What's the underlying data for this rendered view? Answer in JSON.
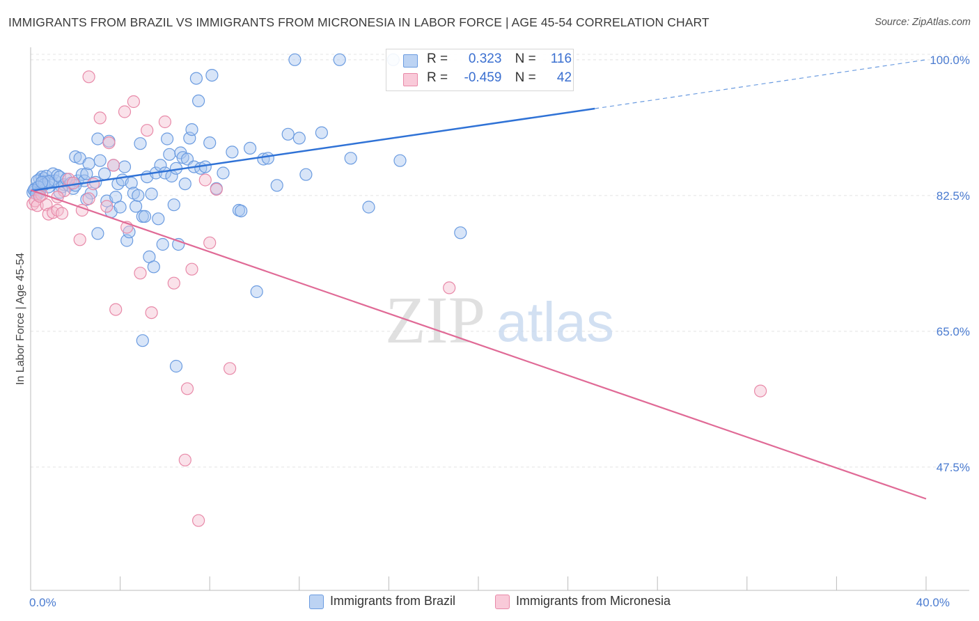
{
  "title": "IMMIGRANTS FROM BRAZIL VS IMMIGRANTS FROM MICRONESIA IN LABOR FORCE | AGE 45-54 CORRELATION CHART",
  "source": "Source: ZipAtlas.com",
  "watermark": {
    "zip": "ZIP",
    "atlas": "atlas"
  },
  "legend": {
    "rows": [
      {
        "r_label": "R =",
        "r_value": "0.323",
        "n_label": "N =",
        "n_value": "116",
        "color": "#6a9be0"
      },
      {
        "r_label": "R =",
        "r_value": "-0.459",
        "n_label": "N =",
        "n_value": "42",
        "color": "#e889a8"
      }
    ]
  },
  "bottom_legend": [
    {
      "label": "Immigrants from Brazil",
      "color": "#6a9be0"
    },
    {
      "label": "Immigrants from Micronesia",
      "color": "#e889a8"
    }
  ],
  "chart_data": {
    "type": "scatter",
    "title": "IMMIGRANTS FROM BRAZIL VS IMMIGRANTS FROM MICRONESIA IN LABOR FORCE | AGE 45-54 CORRELATION CHART",
    "xlabel": "",
    "ylabel": "In Labor Force | Age 45-54",
    "xlim": [
      0,
      40
    ],
    "ylim": [
      31.6,
      101.6
    ],
    "x_tick_labels": [
      {
        "value": 0,
        "label": "0.0%"
      },
      {
        "value": 40,
        "label": "40.0%"
      }
    ],
    "y_tick_labels": [
      {
        "value": 100,
        "label": "100.0%"
      },
      {
        "value": 82.5,
        "label": "82.5%"
      },
      {
        "value": 65,
        "label": "65.0%"
      },
      {
        "value": 47.5,
        "label": "47.5%"
      }
    ],
    "grid": true,
    "legend_position": "top-center",
    "series": [
      {
        "name": "Immigrants from Brazil",
        "color": "#6a9be0",
        "fill": "#a9c6ef",
        "trend": {
          "x": [
            0,
            25.2
          ],
          "y": [
            83.1,
            93.7
          ],
          "dashed_to": [
            40,
            100
          ]
        },
        "points": [
          [
            0.2,
            83.1
          ],
          [
            0.3,
            83.0
          ],
          [
            0.3,
            82.6
          ],
          [
            0.4,
            84.6
          ],
          [
            0.4,
            83.3
          ],
          [
            0.5,
            84.9
          ],
          [
            0.6,
            84.7
          ],
          [
            0.6,
            84.3
          ],
          [
            0.7,
            85.0
          ],
          [
            0.8,
            83.6
          ],
          [
            0.9,
            84.4
          ],
          [
            1.0,
            85.3
          ],
          [
            1.1,
            84.4
          ],
          [
            1.2,
            85.1
          ],
          [
            1.3,
            84.9
          ],
          [
            1.4,
            83.6
          ],
          [
            1.5,
            83.9
          ],
          [
            1.6,
            84.6
          ],
          [
            1.7,
            83.8
          ],
          [
            1.8,
            84.1
          ],
          [
            1.9,
            83.4
          ],
          [
            2.0,
            87.5
          ],
          [
            2.1,
            84.4
          ],
          [
            2.2,
            87.3
          ],
          [
            2.3,
            85.2
          ],
          [
            2.4,
            84.4
          ],
          [
            2.5,
            85.3
          ],
          [
            2.6,
            86.6
          ],
          [
            2.7,
            82.8
          ],
          [
            2.9,
            84.2
          ],
          [
            3.0,
            89.8
          ],
          [
            3.1,
            87.0
          ],
          [
            3.3,
            85.3
          ],
          [
            3.4,
            81.8
          ],
          [
            3.5,
            89.5
          ],
          [
            3.6,
            80.4
          ],
          [
            3.7,
            86.4
          ],
          [
            3.8,
            82.3
          ],
          [
            3.9,
            84.0
          ],
          [
            4.0,
            81.0
          ],
          [
            4.1,
            84.5
          ],
          [
            4.2,
            86.2
          ],
          [
            4.3,
            76.7
          ],
          [
            4.4,
            77.8
          ],
          [
            4.5,
            84.1
          ],
          [
            4.6,
            82.8
          ],
          [
            4.7,
            81.1
          ],
          [
            4.8,
            82.5
          ],
          [
            4.9,
            89.2
          ],
          [
            5.0,
            79.8
          ],
          [
            5.1,
            79.8
          ],
          [
            5.2,
            84.9
          ],
          [
            5.3,
            74.6
          ],
          [
            5.4,
            82.7
          ],
          [
            5.5,
            73.3
          ],
          [
            5.6,
            85.4
          ],
          [
            5.7,
            79.5
          ],
          [
            5.8,
            86.4
          ],
          [
            5.9,
            76.2
          ],
          [
            6.0,
            85.4
          ],
          [
            6.1,
            89.8
          ],
          [
            6.2,
            87.8
          ],
          [
            6.3,
            85.0
          ],
          [
            6.4,
            81.3
          ],
          [
            6.5,
            86.0
          ],
          [
            6.6,
            76.2
          ],
          [
            6.7,
            88.0
          ],
          [
            6.8,
            87.4
          ],
          [
            6.9,
            84.0
          ],
          [
            7.0,
            87.2
          ],
          [
            7.1,
            89.9
          ],
          [
            7.2,
            91.0
          ],
          [
            7.3,
            86.2
          ],
          [
            7.4,
            97.6
          ],
          [
            7.5,
            94.7
          ],
          [
            7.6,
            86.0
          ],
          [
            7.8,
            86.2
          ],
          [
            8.0,
            89.3
          ],
          [
            8.1,
            98.0
          ],
          [
            8.3,
            83.4
          ],
          [
            8.6,
            85.4
          ],
          [
            9.0,
            88.1
          ],
          [
            9.3,
            80.6
          ],
          [
            9.4,
            80.5
          ],
          [
            9.8,
            88.6
          ],
          [
            10.4,
            87.2
          ],
          [
            10.6,
            87.3
          ],
          [
            11.0,
            83.8
          ],
          [
            11.5,
            90.4
          ],
          [
            11.8,
            100.0
          ],
          [
            12.0,
            89.9
          ],
          [
            12.3,
            85.2
          ],
          [
            13.0,
            90.6
          ],
          [
            13.8,
            100.0
          ],
          [
            14.3,
            87.3
          ],
          [
            15.1,
            81.0
          ],
          [
            16.2,
            100.0
          ],
          [
            16.5,
            87.0
          ],
          [
            19.2,
            77.7
          ],
          [
            3.0,
            77.6
          ],
          [
            5.0,
            63.8
          ],
          [
            6.5,
            60.5
          ],
          [
            10.1,
            70.1
          ],
          [
            0.1,
            82.9
          ],
          [
            0.2,
            83.4
          ],
          [
            0.3,
            84.4
          ],
          [
            0.4,
            82.9
          ],
          [
            0.6,
            83.9
          ],
          [
            0.8,
            84.3
          ],
          [
            1.3,
            82.9
          ],
          [
            2.0,
            83.8
          ],
          [
            2.5,
            82.0
          ],
          [
            0.15,
            83.2
          ],
          [
            0.25,
            82.7
          ],
          [
            0.35,
            83.6
          ],
          [
            0.5,
            84.2
          ]
        ]
      },
      {
        "name": "Immigrants from Micronesia",
        "color": "#e889a8",
        "fill": "#f5bfd0",
        "trend": {
          "x": [
            0,
            40
          ],
          "y": [
            83.2,
            43.4
          ]
        },
        "points": [
          [
            0.1,
            81.4
          ],
          [
            0.2,
            81.8
          ],
          [
            0.3,
            81.2
          ],
          [
            0.5,
            82.6
          ],
          [
            0.7,
            81.3
          ],
          [
            0.8,
            80.1
          ],
          [
            1.0,
            80.3
          ],
          [
            1.2,
            80.6
          ],
          [
            1.4,
            80.2
          ],
          [
            1.5,
            83.1
          ],
          [
            1.7,
            84.6
          ],
          [
            1.9,
            84.1
          ],
          [
            2.2,
            76.8
          ],
          [
            2.3,
            80.6
          ],
          [
            2.6,
            82.1
          ],
          [
            2.8,
            84.0
          ],
          [
            3.1,
            92.5
          ],
          [
            3.4,
            81.1
          ],
          [
            3.5,
            89.3
          ],
          [
            3.7,
            86.4
          ],
          [
            3.8,
            67.8
          ],
          [
            4.2,
            93.3
          ],
          [
            4.3,
            78.4
          ],
          [
            4.6,
            94.6
          ],
          [
            4.9,
            72.5
          ],
          [
            5.2,
            90.9
          ],
          [
            5.4,
            67.4
          ],
          [
            6.0,
            92.0
          ],
          [
            6.4,
            71.2
          ],
          [
            6.9,
            48.4
          ],
          [
            7.0,
            57.6
          ],
          [
            7.2,
            73.0
          ],
          [
            7.5,
            40.6
          ],
          [
            7.8,
            84.5
          ],
          [
            8.0,
            76.4
          ],
          [
            8.3,
            83.3
          ],
          [
            8.9,
            60.2
          ],
          [
            18.7,
            70.6
          ],
          [
            32.6,
            57.3
          ],
          [
            2.6,
            97.8
          ],
          [
            0.4,
            82.4
          ],
          [
            1.2,
            82.3
          ]
        ]
      }
    ]
  }
}
